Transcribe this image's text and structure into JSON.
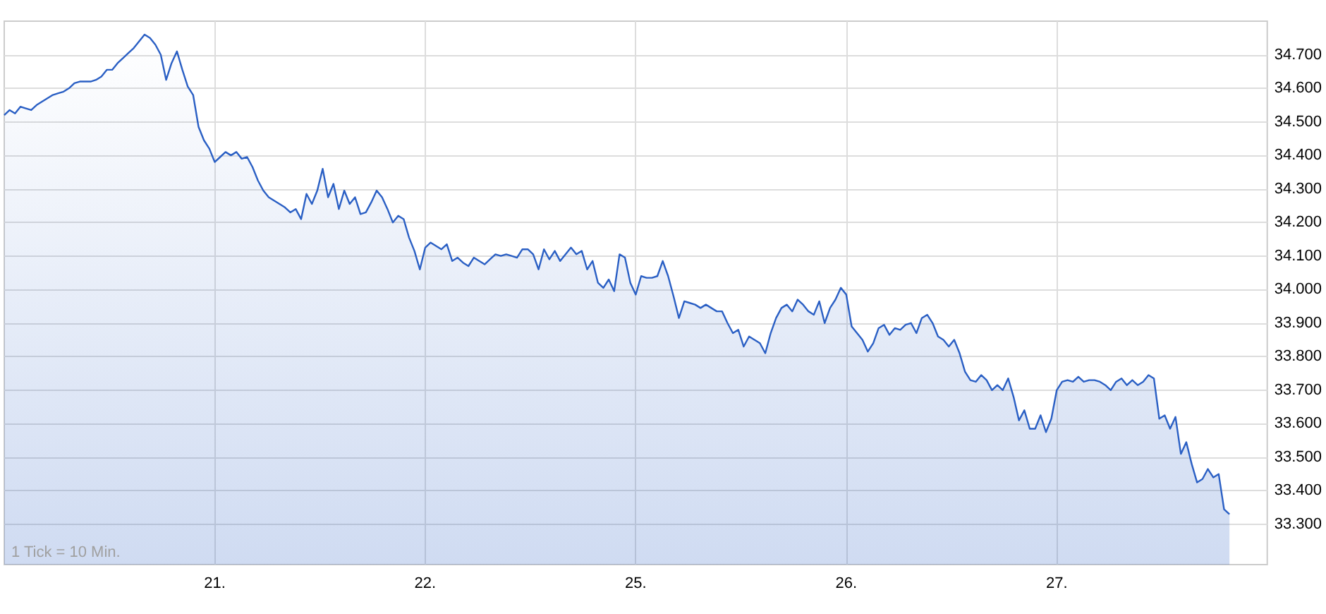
{
  "chart_data": {
    "type": "area",
    "annotations": [
      "1 Tick = 10 Min."
    ],
    "grid": true,
    "categories": [
      null,
      null,
      null,
      null,
      null,
      null,
      null,
      null,
      null,
      null,
      null,
      null,
      null,
      null,
      null,
      null,
      null,
      null,
      null,
      null,
      null,
      null,
      null,
      null,
      null,
      null,
      null,
      null,
      null,
      null,
      null,
      null,
      null,
      null,
      null,
      null,
      null,
      null,
      null,
      "21.",
      null,
      null,
      null,
      null,
      null,
      null,
      null,
      null,
      null,
      null,
      null,
      null,
      null,
      null,
      null,
      null,
      null,
      null,
      null,
      null,
      null,
      null,
      null,
      null,
      null,
      null,
      null,
      null,
      null,
      null,
      null,
      null,
      null,
      null,
      null,
      null,
      null,
      null,
      "22.",
      null,
      null,
      null,
      null,
      null,
      null,
      null,
      null,
      null,
      null,
      null,
      null,
      null,
      null,
      null,
      null,
      null,
      null,
      null,
      null,
      null,
      null,
      null,
      null,
      null,
      null,
      null,
      null,
      null,
      null,
      null,
      null,
      null,
      null,
      null,
      null,
      null,
      null,
      "25.",
      null,
      null,
      null,
      null,
      null,
      null,
      null,
      null,
      null,
      null,
      null,
      null,
      null,
      null,
      null,
      null,
      null,
      null,
      null,
      null,
      null,
      null,
      null,
      null,
      null,
      null,
      null,
      null,
      null,
      null,
      null,
      null,
      null,
      null,
      null,
      null,
      null,
      null,
      "26.",
      null,
      null,
      null,
      null,
      null,
      null,
      null,
      null,
      null,
      null,
      null,
      null,
      null,
      null,
      null,
      null,
      null,
      null,
      null,
      null,
      null,
      null,
      null,
      null,
      null,
      null,
      null,
      null,
      null,
      null,
      null,
      null,
      null,
      null,
      null,
      null,
      null,
      null,
      "27.",
      null,
      null,
      null,
      null,
      null,
      null,
      null,
      null,
      null,
      null,
      null,
      null,
      null,
      null,
      null,
      null,
      null,
      null,
      null,
      null,
      null,
      null,
      null,
      null,
      null,
      null,
      null,
      null,
      null,
      null,
      null,
      null,
      null,
      null,
      null,
      null,
      null,
      null,
      null
    ],
    "ylim": [
      33180,
      34800
    ],
    "yticks": [
      {
        "value": 33300,
        "label": "33.300"
      },
      {
        "value": 33400,
        "label": "33.400"
      },
      {
        "value": 33500,
        "label": "33.500"
      },
      {
        "value": 33600,
        "label": "33.600"
      },
      {
        "value": 33700,
        "label": "33.700"
      },
      {
        "value": 33800,
        "label": "33.800"
      },
      {
        "value": 33900,
        "label": "33.900"
      },
      {
        "value": 34000,
        "label": "34.000"
      },
      {
        "value": 34100,
        "label": "34.100"
      },
      {
        "value": 34200,
        "label": "34.200"
      },
      {
        "value": 34300,
        "label": "34.300"
      },
      {
        "value": 34400,
        "label": "34.400"
      },
      {
        "value": 34500,
        "label": "34.500"
      },
      {
        "value": 34600,
        "label": "34.600"
      },
      {
        "value": 34700,
        "label": "34.700"
      }
    ],
    "series": [
      {
        "color": "#2a5fc4",
        "values": [
          34520,
          34535,
          34525,
          34545,
          34540,
          34535,
          34550,
          34560,
          34570,
          34580,
          34585,
          34590,
          34600,
          34615,
          34620,
          34620,
          34620,
          34625,
          34635,
          34655,
          34655,
          34675,
          34690,
          34705,
          34720,
          34740,
          34760,
          34750,
          34730,
          34700,
          34625,
          34675,
          34710,
          34655,
          34605,
          34580,
          34485,
          34445,
          34420,
          34380,
          34395,
          34410,
          34400,
          34410,
          34390,
          34395,
          34365,
          34325,
          34295,
          34275,
          34265,
          34255,
          34245,
          34230,
          34240,
          34210,
          34285,
          34255,
          34295,
          34360,
          34275,
          34315,
          34240,
          34295,
          34255,
          34275,
          34225,
          34230,
          34260,
          34295,
          34275,
          34240,
          34200,
          34220,
          34210,
          34155,
          34115,
          34060,
          34125,
          34140,
          34130,
          34120,
          34135,
          34085,
          34095,
          34080,
          34070,
          34095,
          34085,
          34075,
          34090,
          34105,
          34100,
          34105,
          34100,
          34095,
          34120,
          34120,
          34105,
          34060,
          34120,
          34090,
          34115,
          34085,
          34105,
          34125,
          34105,
          34115,
          34060,
          34085,
          34020,
          34005,
          34030,
          33995,
          34105,
          34095,
          34020,
          33985,
          34040,
          34035,
          34035,
          34040,
          34085,
          34040,
          33980,
          33915,
          33965,
          33960,
          33955,
          33945,
          33955,
          33945,
          33935,
          33935,
          33900,
          33870,
          33880,
          33830,
          33860,
          33850,
          33840,
          33810,
          33870,
          33915,
          33945,
          33955,
          33935,
          33970,
          33955,
          33935,
          33925,
          33965,
          33900,
          33945,
          33970,
          34005,
          33985,
          33890,
          33870,
          33850,
          33815,
          33840,
          33885,
          33895,
          33865,
          33885,
          33880,
          33895,
          33900,
          33870,
          33915,
          33925,
          33900,
          33860,
          33850,
          33830,
          33850,
          33810,
          33755,
          33730,
          33725,
          33745,
          33730,
          33700,
          33715,
          33700,
          33735,
          33680,
          33610,
          33640,
          33585,
          33585,
          33625,
          33575,
          33615,
          33700,
          33725,
          33730,
          33725,
          33740,
          33725,
          33730,
          33730,
          33725,
          33715,
          33700,
          33725,
          33735,
          33715,
          33730,
          33715,
          33725,
          33745,
          33735,
          33615,
          33625,
          33585,
          33620,
          33510,
          33545,
          33480,
          33425,
          33435,
          33465,
          33440,
          33450,
          33345,
          33330,
          null,
          null,
          null,
          null,
          null,
          null,
          null
        ]
      }
    ]
  }
}
